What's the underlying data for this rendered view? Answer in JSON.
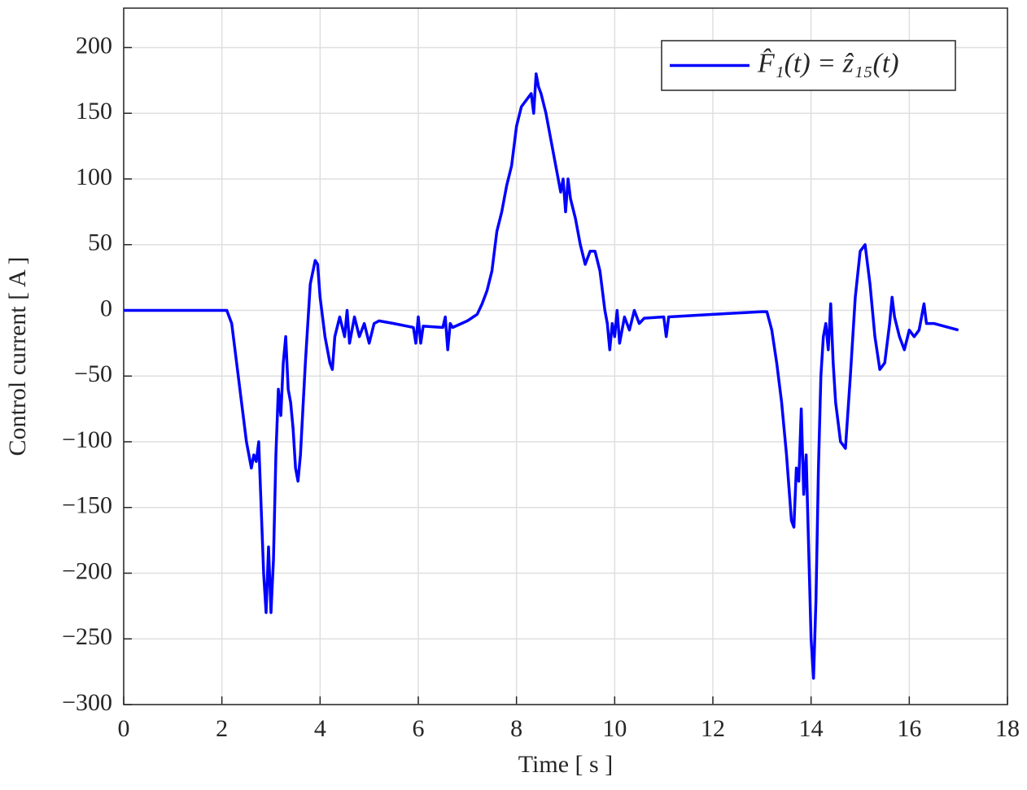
{
  "chart_data": {
    "type": "line",
    "xlabel": "Time [ s ]",
    "ylabel": "Control current [ A ]",
    "xlim": [
      0,
      18
    ],
    "ylim": [
      -300,
      230
    ],
    "xticks": [
      0,
      2,
      4,
      6,
      8,
      10,
      12,
      14,
      16,
      18
    ],
    "yticks": [
      {
        "value": -300,
        "label": "−300"
      },
      {
        "value": -250,
        "label": "−250"
      },
      {
        "value": -200,
        "label": "−200"
      },
      {
        "value": -150,
        "label": "−150"
      },
      {
        "value": -100,
        "label": "−100"
      },
      {
        "value": -50,
        "label": "−50"
      },
      0,
      50,
      100,
      150,
      200
    ],
    "grid": true,
    "legend": "upper right",
    "x": [
      0,
      2,
      2.1,
      2.2,
      2.3,
      2.4,
      2.5,
      2.6,
      2.65,
      2.7,
      2.75,
      2.8,
      2.85,
      2.9,
      2.95,
      3.0,
      3.05,
      3.1,
      3.15,
      3.2,
      3.25,
      3.3,
      3.35,
      3.4,
      3.45,
      3.5,
      3.55,
      3.6,
      3.7,
      3.8,
      3.9,
      3.95,
      4.0,
      4.1,
      4.2,
      4.25,
      4.3,
      4.4,
      4.5,
      4.55,
      4.6,
      4.7,
      4.8,
      4.9,
      5.0,
      5.1,
      5.2,
      5.5,
      5.9,
      5.95,
      6.0,
      6.05,
      6.1,
      6.5,
      6.55,
      6.6,
      6.65,
      6.7,
      7.0,
      7.2,
      7.3,
      7.4,
      7.5,
      7.6,
      7.7,
      7.8,
      7.9,
      8.0,
      8.1,
      8.2,
      8.3,
      8.35,
      8.4,
      8.45,
      8.5,
      8.6,
      8.7,
      8.8,
      8.9,
      8.95,
      9.0,
      9.05,
      9.1,
      9.2,
      9.3,
      9.4,
      9.5,
      9.6,
      9.7,
      9.8,
      9.85,
      9.9,
      9.95,
      10.0,
      10.05,
      10.1,
      10.2,
      10.3,
      10.4,
      10.5,
      10.6,
      11.0,
      11.05,
      11.1,
      12,
      13,
      13.1,
      13.2,
      13.3,
      13.4,
      13.5,
      13.6,
      13.65,
      13.7,
      13.75,
      13.8,
      13.85,
      13.9,
      13.95,
      14.0,
      14.05,
      14.1,
      14.15,
      14.2,
      14.25,
      14.3,
      14.35,
      14.4,
      14.45,
      14.5,
      14.6,
      14.7,
      14.8,
      14.9,
      15.0,
      15.1,
      15.2,
      15.3,
      15.4,
      15.5,
      15.6,
      15.65,
      15.7,
      15.8,
      15.9,
      16.0,
      16.1,
      16.2,
      16.3,
      16.35,
      16.5,
      17.0
    ],
    "series": [
      {
        "name": "F̂₁(t) = ẑ₁₅(t)",
        "color": "#0000ff",
        "values": [
          0,
          0,
          0,
          -10,
          -40,
          -70,
          -100,
          -120,
          -110,
          -115,
          -100,
          -150,
          -200,
          -230,
          -180,
          -230,
          -190,
          -110,
          -60,
          -80,
          -40,
          -20,
          -60,
          -70,
          -90,
          -120,
          -130,
          -110,
          -40,
          20,
          38,
          35,
          10,
          -20,
          -40,
          -45,
          -20,
          -5,
          -20,
          0,
          -25,
          -5,
          -20,
          -10,
          -25,
          -10,
          -8,
          -10,
          -13,
          -25,
          -5,
          -25,
          -12,
          -13,
          -5,
          -30,
          -10,
          -13,
          -8,
          -3,
          5,
          15,
          30,
          60,
          75,
          95,
          110,
          140,
          155,
          160,
          165,
          150,
          180,
          170,
          165,
          150,
          130,
          110,
          90,
          100,
          75,
          100,
          85,
          70,
          50,
          35,
          45,
          45,
          30,
          0,
          -10,
          -30,
          -10,
          -20,
          0,
          -25,
          -5,
          -15,
          0,
          -10,
          -6,
          -5,
          -20,
          -5,
          -3,
          -1,
          -1,
          -15,
          -40,
          -70,
          -110,
          -160,
          -165,
          -120,
          -130,
          -75,
          -140,
          -110,
          -180,
          -250,
          -280,
          -220,
          -120,
          -50,
          -20,
          -10,
          -30,
          5,
          -40,
          -70,
          -100,
          -105,
          -50,
          10,
          45,
          50,
          20,
          -20,
          -45,
          -40,
          -10,
          10,
          -5,
          -20,
          -30,
          -15,
          -20,
          -15,
          5,
          -10,
          -10,
          -15
        ]
      }
    ]
  }
}
